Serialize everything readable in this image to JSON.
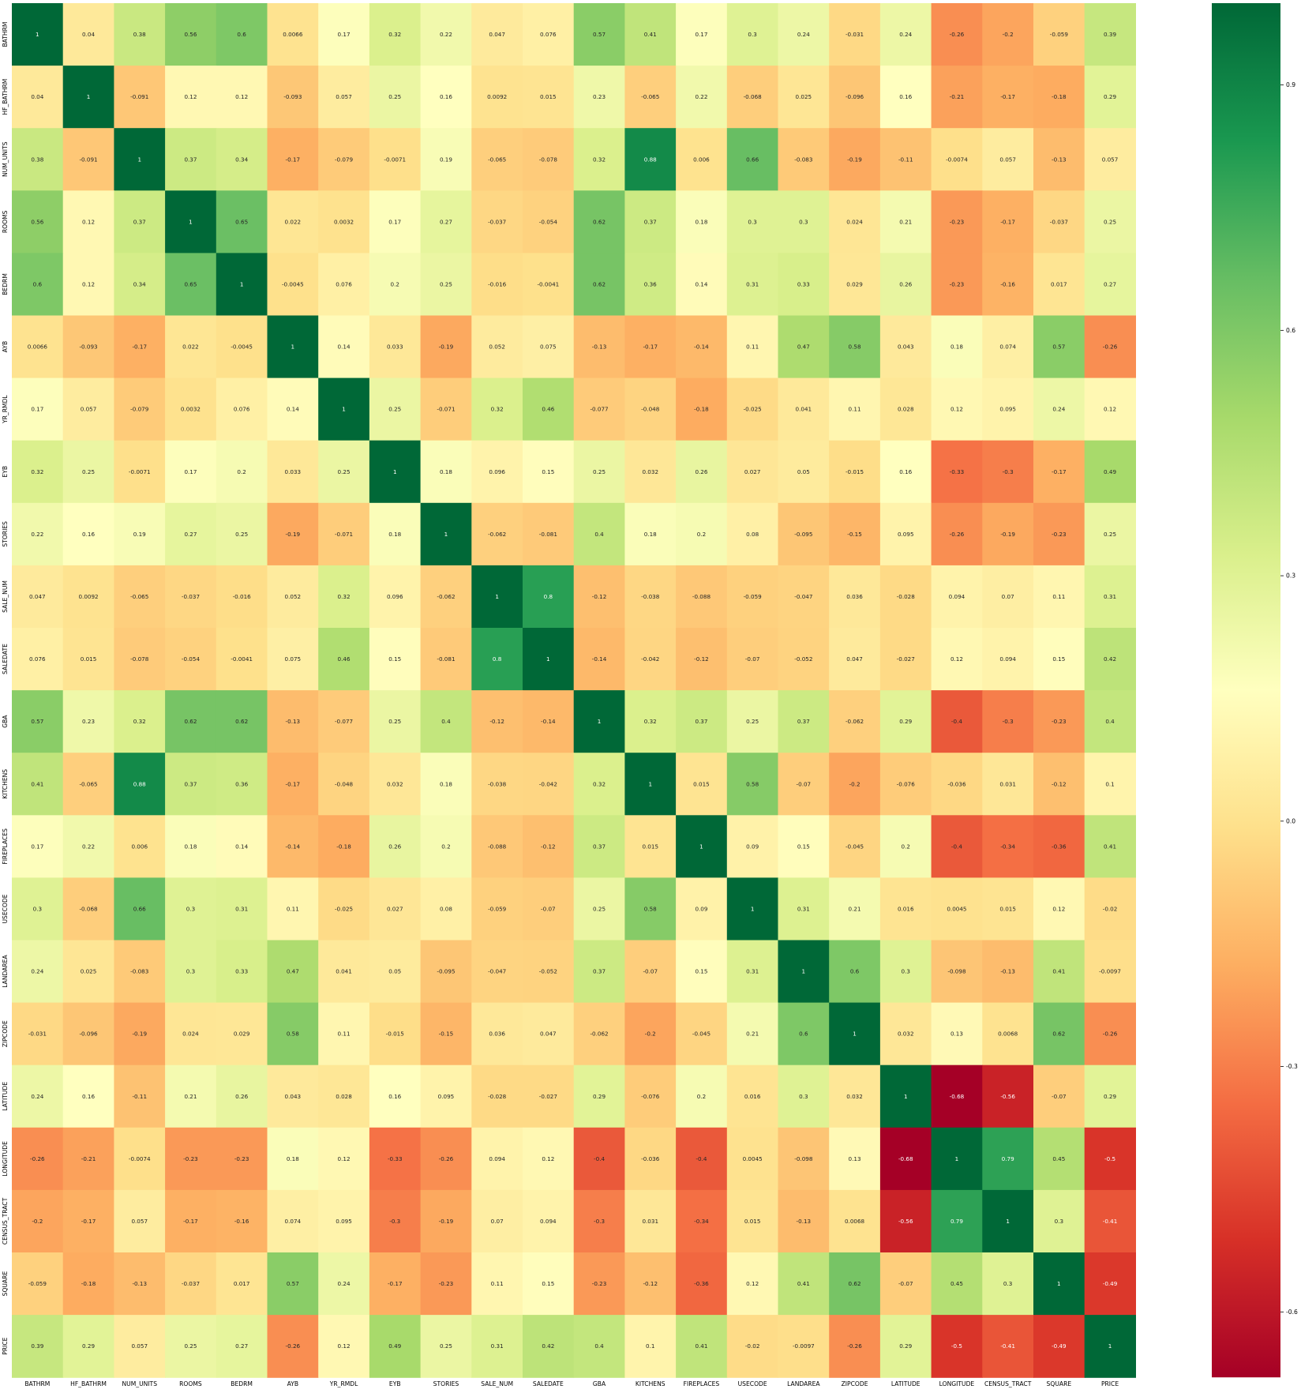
{
  "chart_data": {
    "type": "heatmap",
    "title": "",
    "xlabel": "",
    "ylabel": "",
    "labels": [
      "BATHRM",
      "HF_BATHRM",
      "NUM_UNITS",
      "ROOMS",
      "BEDRM",
      "AYB",
      "YR_RMDL",
      "EYB",
      "STORIES",
      "SALE_NUM",
      "SALEDATE",
      "GBA",
      "KITCHENS",
      "FIREPLACES",
      "USECODE",
      "LANDAREA",
      "ZIPCODE",
      "LATITUDE",
      "LONGITUDE",
      "CENSUS_TRACT",
      "SQUARE",
      "PRICE"
    ],
    "matrix": [
      [
        "1",
        "0.04",
        "0.38",
        "0.56",
        "0.6",
        "0.0066",
        "0.17",
        "0.32",
        "0.22",
        "0.047",
        "0.076",
        "0.57",
        "0.41",
        "0.17",
        "0.3",
        "0.24",
        "-0.031",
        "0.24",
        "-0.26",
        "-0.2",
        "-0.059",
        "0.39"
      ],
      [
        "0.04",
        "1",
        "-0.091",
        "0.12",
        "0.12",
        "-0.093",
        "0.057",
        "0.25",
        "0.16",
        "0.0092",
        "0.015",
        "0.23",
        "-0.065",
        "0.22",
        "-0.068",
        "0.025",
        "-0.096",
        "0.16",
        "-0.21",
        "-0.17",
        "-0.18",
        "0.29"
      ],
      [
        "0.38",
        "-0.091",
        "1",
        "0.37",
        "0.34",
        "-0.17",
        "-0.079",
        "-0.0071",
        "0.19",
        "-0.065",
        "-0.078",
        "0.32",
        "0.88",
        "0.006",
        "0.66",
        "-0.083",
        "-0.19",
        "-0.11",
        "-0.0074",
        "0.057",
        "-0.13",
        "0.057"
      ],
      [
        "0.56",
        "0.12",
        "0.37",
        "1",
        "0.65",
        "0.022",
        "0.0032",
        "0.17",
        "0.27",
        "-0.037",
        "-0.054",
        "0.62",
        "0.37",
        "0.18",
        "0.3",
        "0.3",
        "0.024",
        "0.21",
        "-0.23",
        "-0.17",
        "-0.037",
        "0.25"
      ],
      [
        "0.6",
        "0.12",
        "0.34",
        "0.65",
        "1",
        "-0.0045",
        "0.076",
        "0.2",
        "0.25",
        "-0.016",
        "-0.0041",
        "0.62",
        "0.36",
        "0.14",
        "0.31",
        "0.33",
        "0.029",
        "0.26",
        "-0.23",
        "-0.16",
        "0.017",
        "0.27"
      ],
      [
        "0.0066",
        "-0.093",
        "-0.17",
        "0.022",
        "-0.0045",
        "1",
        "0.14",
        "0.033",
        "-0.19",
        "0.052",
        "0.075",
        "-0.13",
        "-0.17",
        "-0.14",
        "0.11",
        "0.47",
        "0.58",
        "0.043",
        "0.18",
        "0.074",
        "0.57",
        "-0.26"
      ],
      [
        "0.17",
        "0.057",
        "-0.079",
        "0.0032",
        "0.076",
        "0.14",
        "1",
        "0.25",
        "-0.071",
        "0.32",
        "0.46",
        "-0.077",
        "-0.048",
        "-0.18",
        "-0.025",
        "0.041",
        "0.11",
        "0.028",
        "0.12",
        "0.095",
        "0.24",
        "0.12"
      ],
      [
        "0.32",
        "0.25",
        "-0.0071",
        "0.17",
        "0.2",
        "0.033",
        "0.25",
        "1",
        "0.18",
        "0.096",
        "0.15",
        "0.25",
        "0.032",
        "0.26",
        "0.027",
        "0.05",
        "-0.015",
        "0.16",
        "-0.33",
        "-0.3",
        "-0.17",
        "0.49"
      ],
      [
        "0.22",
        "0.16",
        "0.19",
        "0.27",
        "0.25",
        "-0.19",
        "-0.071",
        "0.18",
        "1",
        "-0.062",
        "-0.081",
        "0.4",
        "0.18",
        "0.2",
        "0.08",
        "-0.095",
        "-0.15",
        "0.095",
        "-0.26",
        "-0.19",
        "-0.23",
        "0.25"
      ],
      [
        "0.047",
        "0.0092",
        "-0.065",
        "-0.037",
        "-0.016",
        "0.052",
        "0.32",
        "0.096",
        "-0.062",
        "1",
        "0.8",
        "-0.12",
        "-0.038",
        "-0.088",
        "-0.059",
        "-0.047",
        "0.036",
        "-0.028",
        "0.094",
        "0.07",
        "0.11",
        "0.31"
      ],
      [
        "0.076",
        "0.015",
        "-0.078",
        "-0.054",
        "-0.0041",
        "0.075",
        "0.46",
        "0.15",
        "-0.081",
        "0.8",
        "1",
        "-0.14",
        "-0.042",
        "-0.12",
        "-0.07",
        "-0.052",
        "0.047",
        "-0.027",
        "0.12",
        "0.094",
        "0.15",
        "0.42"
      ],
      [
        "0.57",
        "0.23",
        "0.32",
        "0.62",
        "0.62",
        "-0.13",
        "-0.077",
        "0.25",
        "0.4",
        "-0.12",
        "-0.14",
        "1",
        "0.32",
        "0.37",
        "0.25",
        "0.37",
        "-0.062",
        "0.29",
        "-0.4",
        "-0.3",
        "-0.23",
        "0.4"
      ],
      [
        "0.41",
        "-0.065",
        "0.88",
        "0.37",
        "0.36",
        "-0.17",
        "-0.048",
        "0.032",
        "0.18",
        "-0.038",
        "-0.042",
        "0.32",
        "1",
        "0.015",
        "0.58",
        "-0.07",
        "-0.2",
        "-0.076",
        "-0.036",
        "0.031",
        "-0.12",
        "0.1"
      ],
      [
        "0.17",
        "0.22",
        "0.006",
        "0.18",
        "0.14",
        "-0.14",
        "-0.18",
        "0.26",
        "0.2",
        "-0.088",
        "-0.12",
        "0.37",
        "0.015",
        "1",
        "0.09",
        "0.15",
        "-0.045",
        "0.2",
        "-0.4",
        "-0.34",
        "-0.36",
        "0.41"
      ],
      [
        "0.3",
        "-0.068",
        "0.66",
        "0.3",
        "0.31",
        "0.11",
        "-0.025",
        "0.027",
        "0.08",
        "-0.059",
        "-0.07",
        "0.25",
        "0.58",
        "0.09",
        "1",
        "0.31",
        "0.21",
        "0.016",
        "0.0045",
        "0.015",
        "0.12",
        "-0.02"
      ],
      [
        "0.24",
        "0.025",
        "-0.083",
        "0.3",
        "0.33",
        "0.47",
        "0.041",
        "0.05",
        "-0.095",
        "-0.047",
        "-0.052",
        "0.37",
        "-0.07",
        "0.15",
        "0.31",
        "1",
        "0.6",
        "0.3",
        "-0.098",
        "-0.13",
        "0.41",
        "-0.0097"
      ],
      [
        "-0.031",
        "-0.096",
        "-0.19",
        "0.024",
        "0.029",
        "0.58",
        "0.11",
        "-0.015",
        "-0.15",
        "0.036",
        "0.047",
        "-0.062",
        "-0.2",
        "-0.045",
        "0.21",
        "0.6",
        "1",
        "0.032",
        "0.13",
        "0.0068",
        "0.62",
        "-0.26"
      ],
      [
        "0.24",
        "0.16",
        "-0.11",
        "0.21",
        "0.26",
        "0.043",
        "0.028",
        "0.16",
        "0.095",
        "-0.028",
        "-0.027",
        "0.29",
        "-0.076",
        "0.2",
        "0.016",
        "0.3",
        "0.032",
        "1",
        "-0.68",
        "-0.56",
        "-0.07",
        "0.29"
      ],
      [
        "-0.26",
        "-0.21",
        "-0.0074",
        "-0.23",
        "-0.23",
        "0.18",
        "0.12",
        "-0.33",
        "-0.26",
        "0.094",
        "0.12",
        "-0.4",
        "-0.036",
        "-0.4",
        "0.0045",
        "-0.098",
        "0.13",
        "-0.68",
        "1",
        "0.79",
        "0.45",
        "-0.5"
      ],
      [
        "-0.2",
        "-0.17",
        "0.057",
        "-0.17",
        "-0.16",
        "0.074",
        "0.095",
        "-0.3",
        "-0.19",
        "0.07",
        "0.094",
        "-0.3",
        "0.031",
        "-0.34",
        "0.015",
        "-0.13",
        "0.0068",
        "-0.56",
        "0.79",
        "1",
        "0.3",
        "-0.41"
      ],
      [
        "-0.059",
        "-0.18",
        "-0.13",
        "-0.037",
        "0.017",
        "0.57",
        "0.24",
        "-0.17",
        "-0.23",
        "0.11",
        "0.15",
        "-0.23",
        "-0.12",
        "-0.36",
        "0.12",
        "0.41",
        "0.62",
        "-0.07",
        "0.45",
        "0.3",
        "1",
        "-0.49"
      ],
      [
        "0.39",
        "0.29",
        "0.057",
        "0.25",
        "0.27",
        "-0.26",
        "0.12",
        "0.49",
        "0.25",
        "0.31",
        "0.42",
        "0.4",
        "0.1",
        "0.41",
        "-0.02",
        "-0.0097",
        "-0.26",
        "0.29",
        "-0.5",
        "-0.41",
        "-0.49",
        "1"
      ]
    ],
    "vmin": -0.68,
    "vmax": 1.0,
    "colormap": "RdYlGn",
    "annotated": true,
    "grid": false,
    "legend": "colorbar-right",
    "colorbar_ticks": [
      "0.9",
      "0.6",
      "0.3",
      "0.0",
      "-0.3",
      "-0.6"
    ]
  }
}
